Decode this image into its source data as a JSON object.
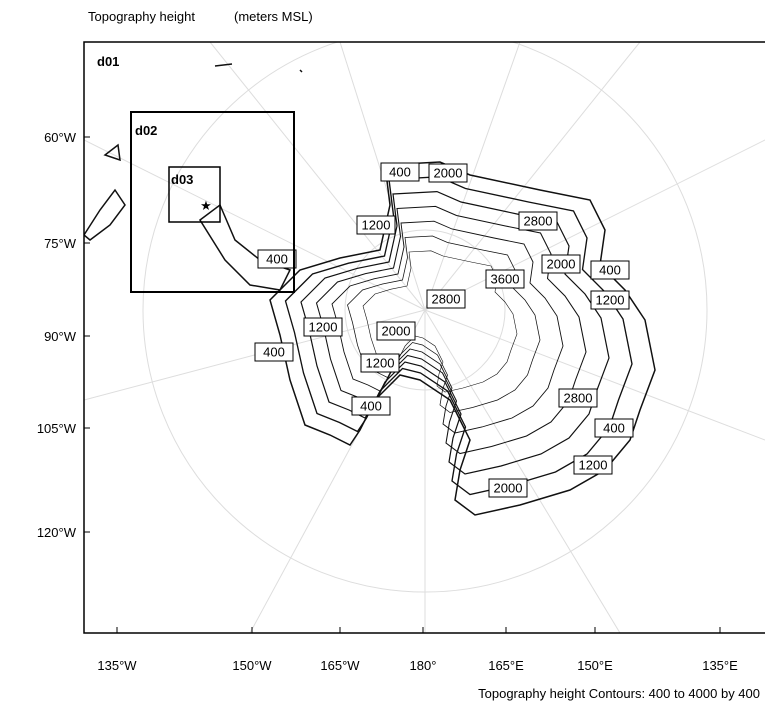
{
  "header": {
    "title": "Topography height",
    "units": "(meters MSL)"
  },
  "domains": [
    "d01",
    "d02",
    "d03"
  ],
  "left_axis_labels": [
    "60°W",
    "75°W",
    "90°W",
    "105°W",
    "120°W"
  ],
  "bottom_axis_labels": [
    "135°W",
    "150°W",
    "165°W",
    "180°",
    "165°E",
    "150°E",
    "135°E"
  ],
  "contour_labels": [
    400,
    2000,
    1200,
    2800,
    400,
    3600,
    2000,
    400,
    1200,
    2800,
    1200,
    2000,
    400,
    1200,
    400,
    2800,
    400,
    1200,
    2000
  ],
  "footer": "Topography height Contours: 400 to 4000 by 400"
}
